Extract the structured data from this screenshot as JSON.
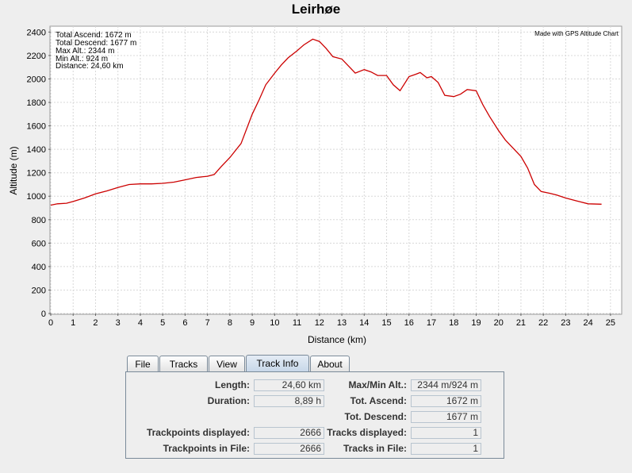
{
  "chart_data": {
    "type": "line",
    "title": "Leirhøe",
    "xlabel": "Distance (km)",
    "ylabel": "Altitude (m)",
    "xlim": [
      0,
      25.5
    ],
    "ylim": [
      0,
      2450
    ],
    "xticks": [
      0,
      1,
      2,
      3,
      4,
      5,
      6,
      7,
      8,
      9,
      10,
      11,
      12,
      13,
      14,
      15,
      16,
      17,
      18,
      19,
      20,
      21,
      22,
      23,
      24,
      25
    ],
    "yticks": [
      0,
      200,
      400,
      600,
      800,
      1000,
      1200,
      1400,
      1600,
      1800,
      2000,
      2200,
      2400
    ],
    "grid": true,
    "series": [
      {
        "color": "#cc0000",
        "x": [
          0,
          0.3,
          0.7,
          1.0,
          1.5,
          2.0,
          2.5,
          3.0,
          3.5,
          4.0,
          4.5,
          5.0,
          5.5,
          6.0,
          6.5,
          7.0,
          7.3,
          7.6,
          8.0,
          8.5,
          9.0,
          9.3,
          9.6,
          10.0,
          10.3,
          10.6,
          11.0,
          11.3,
          11.7,
          12.0,
          12.3,
          12.6,
          13.0,
          13.3,
          13.6,
          14.0,
          14.3,
          14.6,
          15.0,
          15.3,
          15.6,
          16.0,
          16.3,
          16.5,
          16.8,
          17.0,
          17.3,
          17.6,
          18.0,
          18.3,
          18.6,
          19.0,
          19.3,
          19.6,
          20.0,
          20.3,
          20.6,
          21.0,
          21.3,
          21.6,
          21.9,
          22.3,
          22.6,
          23.0,
          23.5,
          24.0,
          24.6
        ],
        "y": [
          924,
          935,
          940,
          955,
          985,
          1020,
          1045,
          1075,
          1100,
          1105,
          1105,
          1110,
          1120,
          1140,
          1160,
          1170,
          1185,
          1250,
          1330,
          1450,
          1700,
          1820,
          1950,
          2050,
          2120,
          2180,
          2240,
          2290,
          2340,
          2320,
          2260,
          2190,
          2170,
          2110,
          2050,
          2080,
          2060,
          2030,
          2030,
          1950,
          1900,
          2020,
          2040,
          2055,
          2010,
          2020,
          1970,
          1860,
          1850,
          1870,
          1910,
          1900,
          1780,
          1680,
          1560,
          1480,
          1420,
          1340,
          1240,
          1100,
          1040,
          1025,
          1010,
          985,
          960,
          935,
          932
        ]
      }
    ]
  },
  "stats": {
    "total_ascend": "Total Ascend: 1672 m",
    "total_descend": "Total Descend: 1677 m",
    "max_alt": "Max Alt.: 2344 m",
    "min_alt": "Min Alt.: 924 m",
    "distance": "Distance: 24,60 km",
    "credit": "Made with GPS Altitude Chart"
  },
  "tabs": [
    {
      "label": "File"
    },
    {
      "label": "Tracks"
    },
    {
      "label": "View"
    },
    {
      "label": "Track Info"
    },
    {
      "label": "About"
    }
  ],
  "track_info": {
    "length_label": "Length:",
    "length_value": "24,60 km",
    "duration_label": "Duration:",
    "duration_value": "8,89 h",
    "maxmin_label": "Max/Min Alt.:",
    "maxmin_value": "2344 m/924 m",
    "ascend_label": "Tot. Ascend:",
    "ascend_value": "1672 m",
    "descend_label": "Tot. Descend:",
    "descend_value": "1677 m",
    "tp_displayed_label": "Trackpoints displayed:",
    "tp_displayed_value": "2666",
    "tracks_displayed_label": "Tracks displayed:",
    "tracks_displayed_value": "1",
    "tp_file_label": "Trackpoints in File:",
    "tp_file_value": "2666",
    "tracks_file_label": "Tracks in File:",
    "tracks_file_value": "1"
  }
}
